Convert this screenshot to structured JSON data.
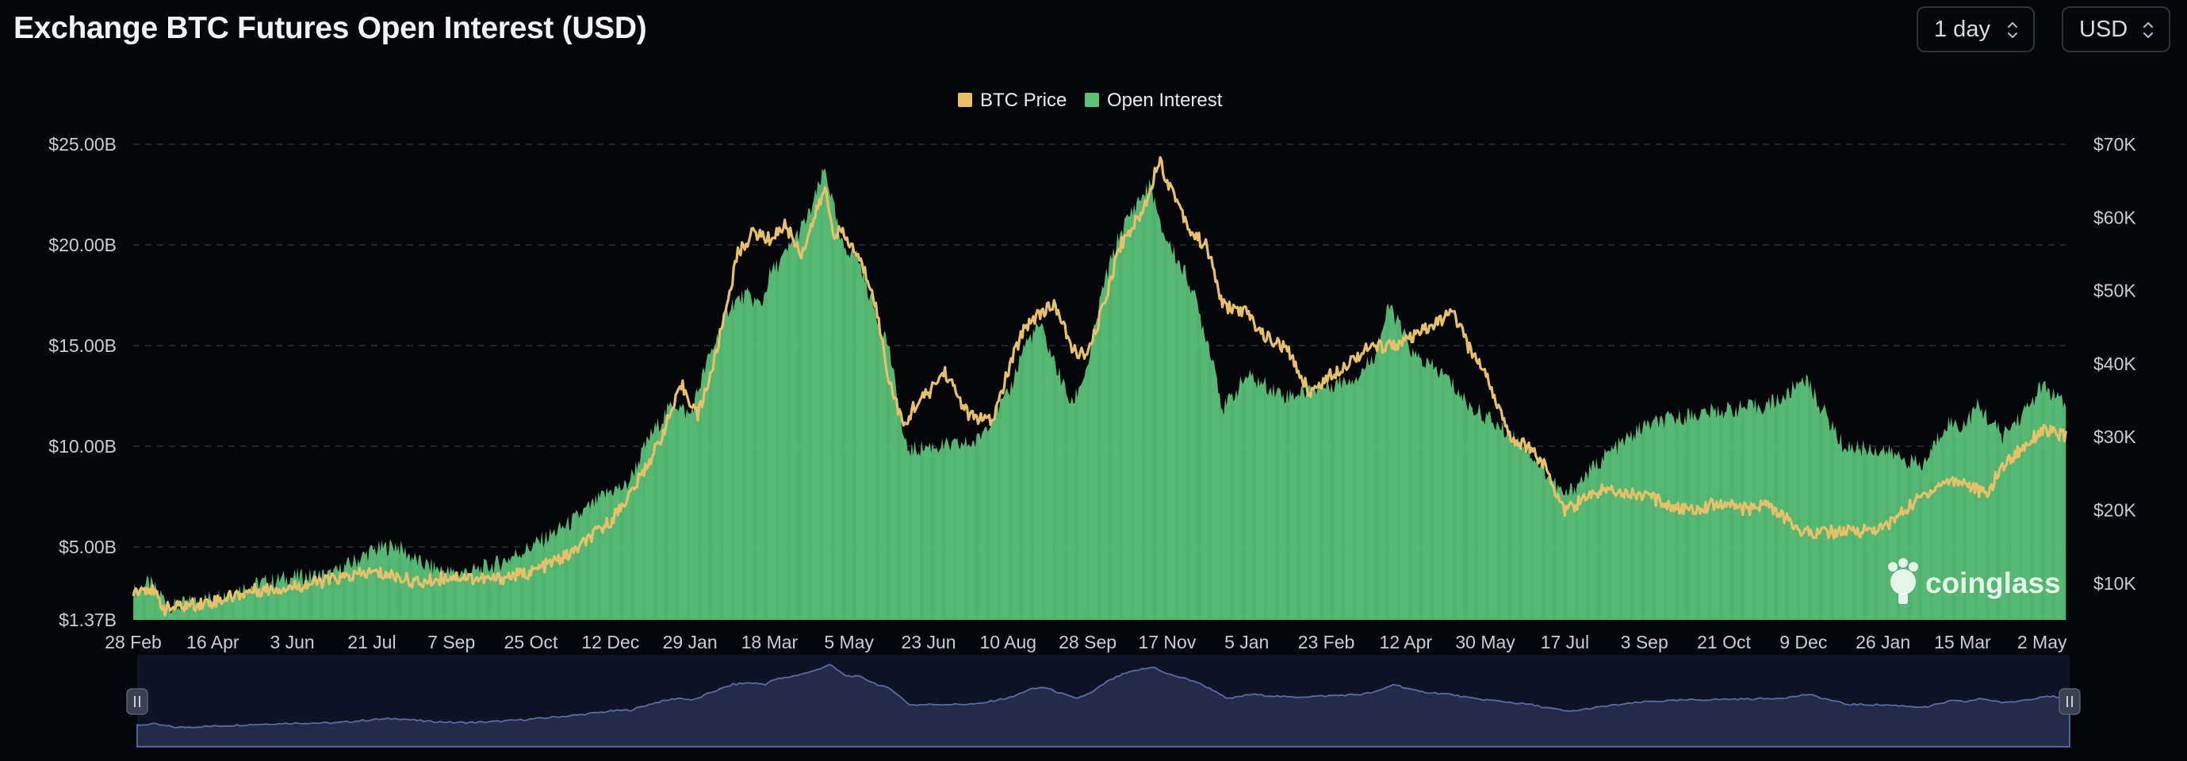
{
  "header": {
    "title": "Exchange BTC Futures Open Interest (USD)",
    "interval_value": "1 day",
    "currency_value": "USD"
  },
  "colors": {
    "background": "#05060a",
    "open_interest": "#5cc27a",
    "btc_price": "#e8c06a",
    "navigator_fill": "#232b48",
    "navigator_line": "#5a6aa8",
    "grid": "#2a2d35"
  },
  "watermark": "coinglass",
  "chart_data": {
    "type": "area",
    "legend": [
      "BTC Price",
      "Open Interest"
    ],
    "legend_placement": "top-center",
    "grid": true,
    "x_tick_labels": [
      "28 Feb",
      "16 Apr",
      "3 Jun",
      "21 Jul",
      "7 Sep",
      "25 Oct",
      "12 Dec",
      "29 Jan",
      "18 Mar",
      "5 May",
      "23 Jun",
      "10 Aug",
      "28 Sep",
      "17 Nov",
      "5 Jan",
      "23 Feb",
      "12 Apr",
      "30 May",
      "17 Jul",
      "3 Sep",
      "21 Oct",
      "9 Dec",
      "26 Jan",
      "15 Mar",
      "2 May"
    ],
    "y_left": {
      "tick_labels": [
        "$1.37B",
        "$5.00B",
        "$10.00B",
        "$15.00B",
        "$20.00B",
        "$25.00B"
      ],
      "tick_values": [
        1.37,
        5,
        10,
        15,
        20,
        25
      ],
      "range": [
        1.37,
        25
      ]
    },
    "y_right": {
      "tick_labels": [
        "$10K",
        "$20K",
        "$30K",
        "$40K",
        "$50K",
        "$60K",
        "$70K"
      ],
      "tick_values": [
        10000,
        20000,
        30000,
        40000,
        50000,
        60000,
        70000
      ],
      "range": [
        5000,
        70000
      ]
    },
    "x_index_range": [
      0,
      24.3
    ],
    "series": [
      {
        "name": "Open Interest",
        "axis": "left",
        "unit": "USD billions",
        "x": [
          0,
          0.2,
          0.5,
          1,
          1.5,
          2,
          2.5,
          3,
          3.3,
          3.6,
          4,
          4.3,
          4.6,
          5,
          5.5,
          6,
          6.2,
          6.5,
          6.8,
          7,
          7.2,
          7.5,
          7.7,
          7.9,
          8,
          8.2,
          8.5,
          8.7,
          8.8,
          8.9,
          9.1,
          9.3,
          9.5,
          9.7,
          9.8,
          10,
          10.3,
          10.6,
          10.8,
          11,
          11.2,
          11.4,
          11.6,
          11.8,
          12,
          12.2,
          12.4,
          12.6,
          12.8,
          12.9,
          13.1,
          13.3,
          13.6,
          13.7,
          14,
          14.5,
          15,
          15.4,
          15.6,
          15.8,
          16.1,
          16.5,
          16.8,
          17,
          17.5,
          18,
          18.5,
          19,
          19.5,
          20,
          20.5,
          20.8,
          21,
          21.5,
          22,
          22.5,
          22.8,
          23,
          23.2,
          23.5,
          23.8,
          24,
          24.3
        ],
        "values": [
          2.8,
          3.2,
          2.0,
          2.5,
          3.1,
          3.5,
          3.6,
          4.8,
          5.1,
          4.2,
          3.7,
          3.8,
          4.2,
          5.0,
          6.2,
          7.8,
          8.0,
          10.5,
          12.2,
          11.5,
          14.0,
          17.0,
          17.5,
          17.0,
          18.5,
          19.5,
          21.5,
          23.8,
          22.0,
          20.0,
          19.5,
          17.0,
          15.0,
          10.0,
          9.8,
          10.0,
          10.0,
          10.2,
          11.5,
          12.5,
          15.0,
          16.0,
          14.0,
          12.0,
          14.0,
          18.0,
          20.5,
          22.0,
          23.0,
          21.0,
          19.5,
          18.0,
          14.0,
          11.8,
          13.5,
          12.5,
          13.0,
          13.5,
          14.5,
          17.0,
          14.5,
          13.5,
          12.0,
          11.5,
          10.0,
          7.5,
          9.5,
          11.0,
          11.5,
          11.8,
          12.0,
          12.5,
          13.5,
          10.0,
          9.8,
          9.0,
          11.2,
          11.0,
          12.0,
          10.5,
          11.8,
          13.0,
          12.0
        ]
      },
      {
        "name": "BTC Price",
        "axis": "right",
        "unit": "USD",
        "x": [
          0,
          0.2,
          0.4,
          1,
          1.5,
          2,
          3,
          3.3,
          3.6,
          4,
          4.5,
          5,
          5.5,
          6,
          6.3,
          6.6,
          6.9,
          7.1,
          7.3,
          7.6,
          7.8,
          8,
          8.2,
          8.4,
          8.6,
          8.7,
          8.8,
          8.9,
          9.1,
          9.3,
          9.5,
          9.7,
          9.8,
          10,
          10.2,
          10.5,
          10.8,
          11,
          11.2,
          11.4,
          11.6,
          11.8,
          12,
          12.2,
          12.4,
          12.7,
          12.9,
          13,
          13.1,
          13.3,
          13.5,
          13.7,
          14,
          14.2,
          14.5,
          14.8,
          15,
          15.5,
          16,
          16.3,
          16.6,
          16.8,
          17,
          17.3,
          17.5,
          17.7,
          18,
          18.5,
          19,
          19.5,
          20,
          20.3,
          20.5,
          21,
          21.5,
          22,
          22.5,
          22.8,
          23,
          23.3,
          23.5,
          24,
          24.3
        ],
        "values": [
          9000,
          9500,
          6500,
          7500,
          9000,
          9500,
          11500,
          11000,
          10000,
          11000,
          10500,
          11500,
          14000,
          18500,
          23000,
          29000,
          37000,
          33000,
          40000,
          55000,
          58000,
          57000,
          59000,
          55000,
          61000,
          64000,
          58000,
          58000,
          55000,
          50000,
          38000,
          31000,
          34000,
          36000,
          39000,
          33000,
          32000,
          39000,
          45000,
          47000,
          48000,
          42000,
          41000,
          48000,
          56000,
          61000,
          68000,
          65000,
          63000,
          58000,
          56000,
          48000,
          47000,
          44000,
          42000,
          36000,
          38000,
          42000,
          43000,
          45000,
          47000,
          42000,
          39000,
          30000,
          29000,
          27000,
          20000,
          23000,
          22000,
          20000,
          21000,
          20000,
          21000,
          17000,
          17000,
          17500,
          22000,
          24000,
          24000,
          22000,
          26000,
          31000,
          30000
        ]
      }
    ]
  }
}
